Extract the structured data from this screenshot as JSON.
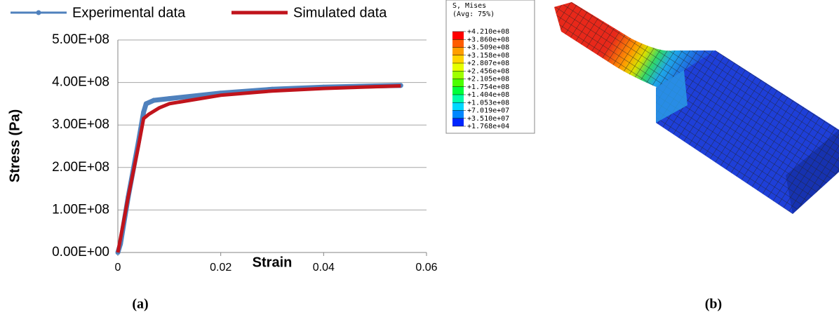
{
  "chart_data": {
    "type": "line",
    "xlabel": "Strain",
    "ylabel": "Stress (Pa)",
    "xlim": [
      0,
      0.06
    ],
    "xticks": [
      0,
      0.02,
      0.04,
      0.06
    ],
    "ylim": [
      0,
      500000000
    ],
    "yticks": [
      {
        "value": 0,
        "label": "0.00E+00"
      },
      {
        "value": 100000000,
        "label": "1.00E+08"
      },
      {
        "value": 200000000,
        "label": "2.00E+08"
      },
      {
        "value": 300000000,
        "label": "3.00E+08"
      },
      {
        "value": 400000000,
        "label": "4.00E+08"
      },
      {
        "value": 500000000,
        "label": "5.00E+08"
      }
    ],
    "grid": true,
    "caption": "(a)",
    "series": [
      {
        "name": "Experimental data",
        "color": "#4f81bd",
        "markers": true,
        "x": [
          0,
          0.0005,
          0.002,
          0.004,
          0.005,
          0.0055,
          0.007,
          0.01,
          0.02,
          0.03,
          0.04,
          0.05,
          0.055
        ],
        "values": [
          0,
          20000000,
          130000000,
          260000000,
          330000000,
          350000000,
          358000000,
          362000000,
          375000000,
          384000000,
          389000000,
          392000000,
          393000000
        ]
      },
      {
        "name": "Simulated data",
        "color": "#c0141c",
        "markers": false,
        "x": [
          0,
          0.002,
          0.004,
          0.005,
          0.006,
          0.008,
          0.01,
          0.02,
          0.03,
          0.04,
          0.05,
          0.055
        ],
        "values": [
          0,
          130000000,
          250000000,
          315000000,
          325000000,
          340000000,
          350000000,
          370000000,
          380000000,
          386000000,
          390000000,
          392000000
        ]
      }
    ]
  },
  "contour_legend": {
    "title": "S, Mises",
    "subtitle": "(Avg: 75%)",
    "levels": [
      {
        "value": 421000000,
        "label": "+4.210e+08"
      },
      {
        "value": 386000000,
        "label": "+3.860e+08"
      },
      {
        "value": 350900000,
        "label": "+3.509e+08"
      },
      {
        "value": 315800000,
        "label": "+3.158e+08"
      },
      {
        "value": 280700000,
        "label": "+2.807e+08"
      },
      {
        "value": 245600000,
        "label": "+2.456e+08"
      },
      {
        "value": 210500000,
        "label": "+2.105e+08"
      },
      {
        "value": 175400000,
        "label": "+1.754e+08"
      },
      {
        "value": 140400000,
        "label": "+1.404e+08"
      },
      {
        "value": 105300000,
        "label": "+1.053e+08"
      },
      {
        "value": 70190000,
        "label": "+7.019e+07"
      },
      {
        "value": 35100000,
        "label": "+3.510e+07"
      },
      {
        "value": 17680,
        "label": "+1.768e+04"
      }
    ],
    "colors": [
      "#ff0000",
      "#ff5c00",
      "#ff9e00",
      "#ffd400",
      "#e6ff00",
      "#9eff00",
      "#4cff00",
      "#00ff3a",
      "#00ffa8",
      "#00d8ff",
      "#0087ff",
      "#0026ff"
    ],
    "caption": "(b)"
  }
}
